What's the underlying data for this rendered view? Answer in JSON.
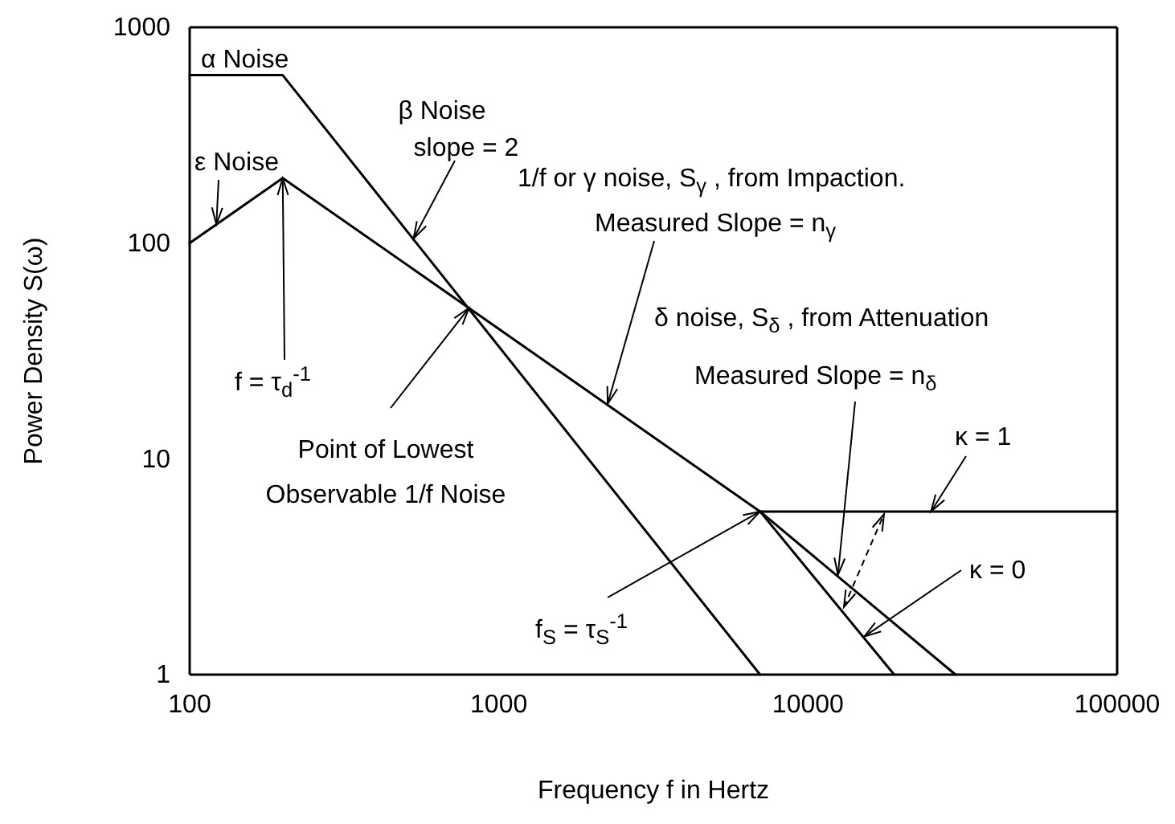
{
  "chart_data": {
    "type": "line",
    "xlabel": "Frequency  f in Hertz",
    "ylabel": "Power Density S(ω)",
    "log": "xy",
    "xlim": [
      100,
      100000
    ],
    "ylim": [
      1,
      1000
    ],
    "xticks": [
      100,
      1000,
      10000,
      100000
    ],
    "yticks": [
      1,
      10,
      100,
      1000
    ],
    "grid": false,
    "marker": "none",
    "line_style": "solid",
    "series": [
      {
        "color": "#000000",
        "x": [
          100,
          200,
          7000
        ],
        "values": [
          600,
          600,
          1
        ]
      },
      {
        "color": "#000000",
        "x": [
          100,
          200,
          800,
          7000,
          100000
        ],
        "values": [
          100,
          200,
          50,
          5.7,
          5.7
        ]
      },
      {
        "color": "#000000",
        "x": [
          7000,
          19000
        ],
        "values": [
          5.7,
          1
        ]
      },
      {
        "color": "#000000",
        "x": [
          7000,
          30000
        ],
        "values": [
          5.7,
          1
        ]
      }
    ],
    "annotations": [
      "α Noise",
      "β Noise",
      {
        "text": "slope = 2",
        "x": 530,
        "y": 105
      },
      {
        "text": "ε Noise",
        "x": 122,
        "y": 122
      },
      {
        "text": "f = τ$_{d}$$^{-1}$",
        "x": 200,
        "y": 200
      },
      "1/f or γ noise, S$_{γ}$ , from Impaction.",
      {
        "text": "Measured Slope = n$_{γ}$",
        "x": 2250,
        "y": 18
      },
      "δ noise, S$_{δ}$ , from Attenuation",
      {
        "text": "Measured Slope = n$_{δ}$",
        "x": 12500,
        "y": 2.9
      },
      {
        "text": "κ = 1",
        "x": 25000,
        "y": 5.7
      },
      {
        "text": "κ = 0",
        "x": 15200,
        "y": 1.5
      },
      {
        "text": "Point of Lowest",
        "x": 800,
        "y": 50
      },
      "Observable 1/f Noise",
      {
        "text": "f$_{S}$ = τ$_{S}$$^{-1}$",
        "x": 7000,
        "y": 5.7
      }
    ]
  }
}
